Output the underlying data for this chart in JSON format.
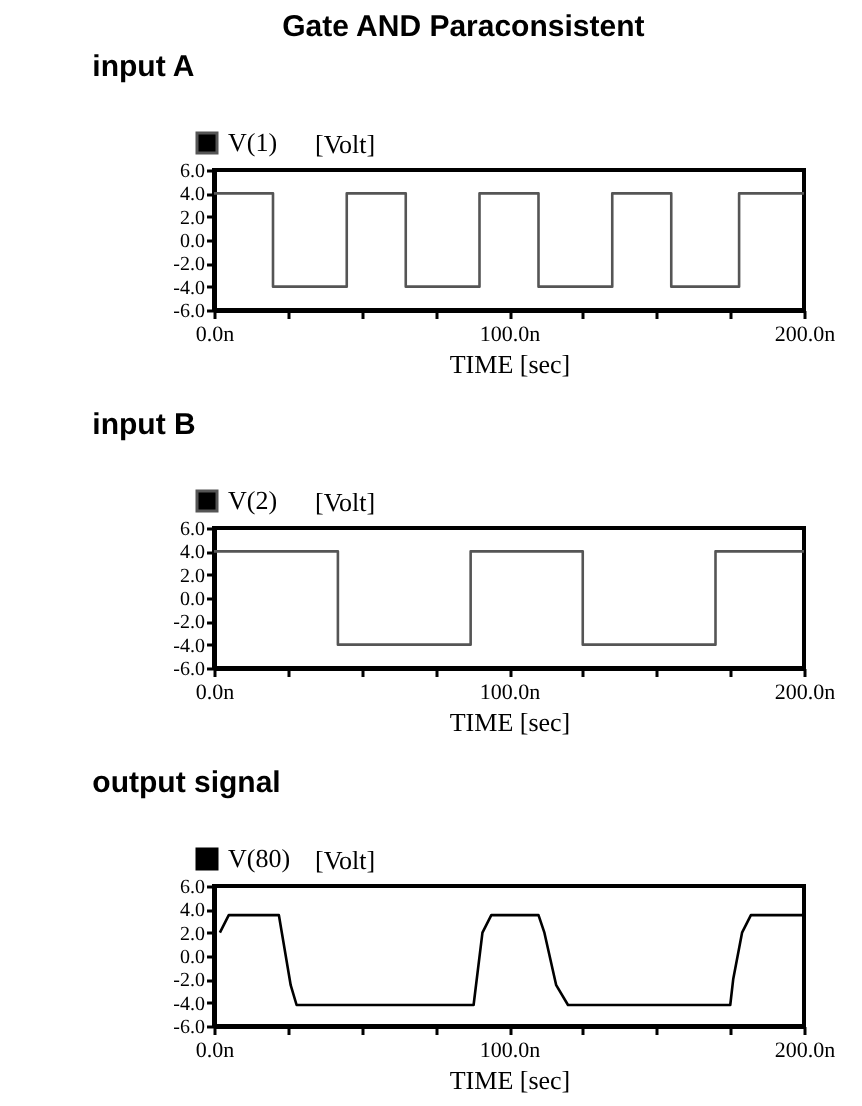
{
  "chart_data": [
    {
      "type": "line",
      "title": "Gate AND Paraconsistent",
      "subtitle": "input A",
      "xlabel": "TIME [sec]",
      "ylabel": "[Volt]",
      "legend": "top left",
      "series": [
        {
          "name": "V(1)",
          "color": "#555555",
          "x": [
            0,
            20,
            20,
            45,
            45,
            65,
            65,
            90,
            90,
            110,
            110,
            135,
            135,
            155,
            155,
            178,
            178,
            200
          ],
          "values": [
            4.0,
            4.0,
            -4.0,
            -4.0,
            4.0,
            4.0,
            -4.0,
            -4.0,
            4.0,
            4.0,
            -4.0,
            -4.0,
            4.0,
            4.0,
            -4.0,
            -4.0,
            4.0,
            4.0
          ]
        }
      ],
      "xlim": [
        0,
        200
      ],
      "xticks": [
        {
          "value": 0,
          "label": "0.0n"
        },
        {
          "value": 25,
          "label": null
        },
        {
          "value": 50,
          "label": null
        },
        {
          "value": 75,
          "label": null
        },
        {
          "value": 100,
          "label": "100.0n"
        },
        {
          "value": 125,
          "label": null
        },
        {
          "value": 150,
          "label": null
        },
        {
          "value": 175,
          "label": null
        },
        {
          "value": 200,
          "label": "200.0n"
        }
      ],
      "ylim": [
        -6,
        6
      ],
      "yticks": [
        {
          "value": -6,
          "label": "-6.0"
        },
        {
          "value": -4,
          "label": "-4.0"
        },
        {
          "value": -2,
          "label": "-2.0"
        },
        {
          "value": 0,
          "label": "0.0"
        },
        {
          "value": 2,
          "label": "2.0"
        },
        {
          "value": 4,
          "label": "4.0"
        },
        {
          "value": 6,
          "label": "6.0"
        }
      ]
    },
    {
      "type": "line",
      "title": "input B",
      "xlabel": "TIME [sec]",
      "ylabel": "[Volt]",
      "legend": "top left",
      "series": [
        {
          "name": "V(2)",
          "color": "#555555",
          "x": [
            0,
            42,
            42,
            87,
            87,
            125,
            125,
            170,
            170,
            200
          ],
          "values": [
            4.0,
            4.0,
            -4.0,
            -4.0,
            4.0,
            4.0,
            -4.0,
            -4.0,
            4.0,
            4.0
          ]
        }
      ],
      "xlim": [
        0,
        200
      ],
      "xticks": [
        {
          "value": 0,
          "label": "0.0n"
        },
        {
          "value": 25,
          "label": null
        },
        {
          "value": 50,
          "label": null
        },
        {
          "value": 75,
          "label": null
        },
        {
          "value": 100,
          "label": "100.0n"
        },
        {
          "value": 125,
          "label": null
        },
        {
          "value": 150,
          "label": null
        },
        {
          "value": 175,
          "label": null
        },
        {
          "value": 200,
          "label": "200.0n"
        }
      ],
      "ylim": [
        -6,
        6
      ],
      "yticks": [
        {
          "value": -6,
          "label": "-6.0"
        },
        {
          "value": -4,
          "label": "-4.0"
        },
        {
          "value": -2,
          "label": "-2.0"
        },
        {
          "value": 0,
          "label": "0.0"
        },
        {
          "value": 2,
          "label": "2.0"
        },
        {
          "value": 4,
          "label": "4.0"
        },
        {
          "value": 6,
          "label": "6.0"
        }
      ]
    },
    {
      "type": "line",
      "title": "output signal",
      "xlabel": "TIME [sec]",
      "ylabel": "[Volt]",
      "legend": "top left",
      "series": [
        {
          "name": "V(80)",
          "color": "#000000",
          "x": [
            2,
            5,
            22,
            23,
            26,
            28,
            88,
            91,
            94,
            110,
            112,
            116,
            120,
            175,
            176,
            179,
            182,
            200
          ],
          "values": [
            2.0,
            3.5,
            3.5,
            2.0,
            -2.5,
            -4.2,
            -4.2,
            2.0,
            3.5,
            3.5,
            2.0,
            -2.5,
            -4.2,
            -4.2,
            -2.0,
            2.0,
            3.5,
            3.5
          ]
        }
      ],
      "xlim": [
        0,
        200
      ],
      "xticks": [
        {
          "value": 0,
          "label": "0.0n"
        },
        {
          "value": 25,
          "label": null
        },
        {
          "value": 50,
          "label": null
        },
        {
          "value": 75,
          "label": null
        },
        {
          "value": 100,
          "label": "100.0n"
        },
        {
          "value": 125,
          "label": null
        },
        {
          "value": 150,
          "label": null
        },
        {
          "value": 175,
          "label": null
        },
        {
          "value": 200,
          "label": "200.0n"
        }
      ],
      "ylim": [
        -6,
        6
      ],
      "yticks": [
        {
          "value": -6,
          "label": "-6.0"
        },
        {
          "value": -4,
          "label": "-4.0"
        },
        {
          "value": -2,
          "label": "-2.0"
        },
        {
          "value": 0,
          "label": "0.0"
        },
        {
          "value": 2,
          "label": "2.0"
        },
        {
          "value": 4,
          "label": "4.0"
        },
        {
          "value": 6,
          "label": "6.0"
        }
      ]
    }
  ]
}
